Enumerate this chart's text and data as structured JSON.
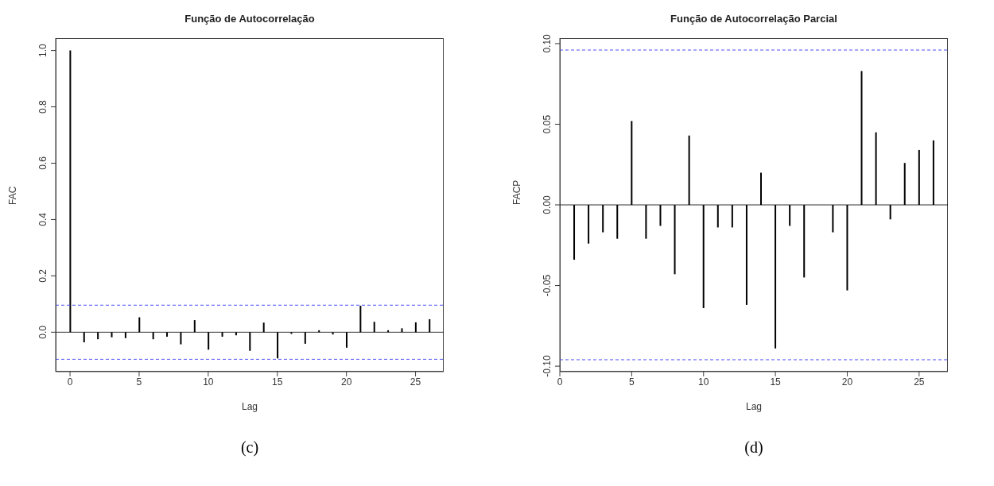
{
  "chart_data": [
    {
      "type": "bar",
      "title": "Função de Autocorrelação",
      "xlabel": "Lag",
      "ylabel": "FAC",
      "x": [
        0,
        1,
        2,
        3,
        4,
        5,
        6,
        7,
        8,
        9,
        10,
        11,
        12,
        13,
        14,
        15,
        16,
        17,
        18,
        19,
        20,
        21,
        22,
        23,
        24,
        25,
        26
      ],
      "series": [
        {
          "color": "#000000",
          "values": [
            1,
            -0.036,
            -0.025,
            -0.018,
            -0.021,
            0.053,
            -0.025,
            -0.016,
            -0.043,
            0.043,
            -0.062,
            -0.016,
            -0.011,
            -0.066,
            0.034,
            -0.093,
            -0.006,
            -0.041,
            0.007,
            -0.008,
            -0.055,
            0.094,
            0.037,
            0.007,
            0.014,
            0.035,
            0.046
          ]
        }
      ],
      "xlim": [
        -1.04,
        27.04
      ],
      "xticks": [
        0,
        5,
        10,
        15,
        20,
        25
      ],
      "ylim": [
        -0.14,
        1.044
      ],
      "yticks": [
        {
          "value": 0,
          "label": "0.0"
        },
        {
          "value": 0.2,
          "label": "0.2"
        },
        {
          "value": 0.4,
          "label": "0.4"
        },
        {
          "value": 0.6,
          "label": "0.6"
        },
        {
          "value": 0.8,
          "label": "0.8"
        },
        {
          "value": 1,
          "label": "1.0"
        }
      ],
      "ref_lines": [
        {
          "axis": "y",
          "value": 0,
          "color": "#000000",
          "line_style": "solid"
        },
        {
          "axis": "y",
          "value": 0.096,
          "color": "#4d4dff",
          "line_style": "dashed"
        },
        {
          "axis": "y",
          "value": -0.096,
          "color": "#4d4dff",
          "line_style": "dashed"
        }
      ],
      "annotations": [
        "(c)"
      ],
      "grid": false,
      "legend": false
    },
    {
      "type": "bar",
      "title": "Função de Autocorrelação Parcial",
      "xlabel": "Lag",
      "ylabel": "FACP",
      "x": [
        1,
        2,
        3,
        4,
        5,
        6,
        7,
        8,
        9,
        10,
        11,
        12,
        13,
        14,
        15,
        16,
        17,
        18,
        19,
        20,
        21,
        22,
        23,
        24,
        25,
        26
      ],
      "series": [
        {
          "color": "#000000",
          "values": [
            -0.034,
            -0.024,
            -0.017,
            -0.021,
            0.052,
            -0.021,
            -0.013,
            -0.043,
            0.043,
            -0.064,
            -0.014,
            -0.014,
            -0.062,
            0.02,
            -0.089,
            -0.013,
            -0.045,
            0,
            -0.017,
            -0.053,
            0.083,
            0.045,
            -0.009,
            0.026,
            0.034,
            0.04
          ]
        }
      ],
      "xlim": [
        0,
        27
      ],
      "xticks": [
        0,
        5,
        10,
        15,
        20,
        25
      ],
      "ylim": [
        -0.1034,
        0.1034
      ],
      "yticks": [
        {
          "value": -0.1,
          "label": "-0.10"
        },
        {
          "value": -0.05,
          "label": "-0.05"
        },
        {
          "value": 0,
          "label": "0.00"
        },
        {
          "value": 0.05,
          "label": "0.05"
        },
        {
          "value": 0.1,
          "label": "0.10"
        }
      ],
      "ref_lines": [
        {
          "axis": "y",
          "value": 0,
          "color": "#000000",
          "line_style": "solid"
        },
        {
          "axis": "y",
          "value": 0.096,
          "color": "#4d4dff",
          "line_style": "dashed"
        },
        {
          "axis": "y",
          "value": -0.096,
          "color": "#4d4dff",
          "line_style": "dashed"
        }
      ],
      "annotations": [
        "(d)"
      ],
      "grid": false,
      "legend": false
    }
  ]
}
